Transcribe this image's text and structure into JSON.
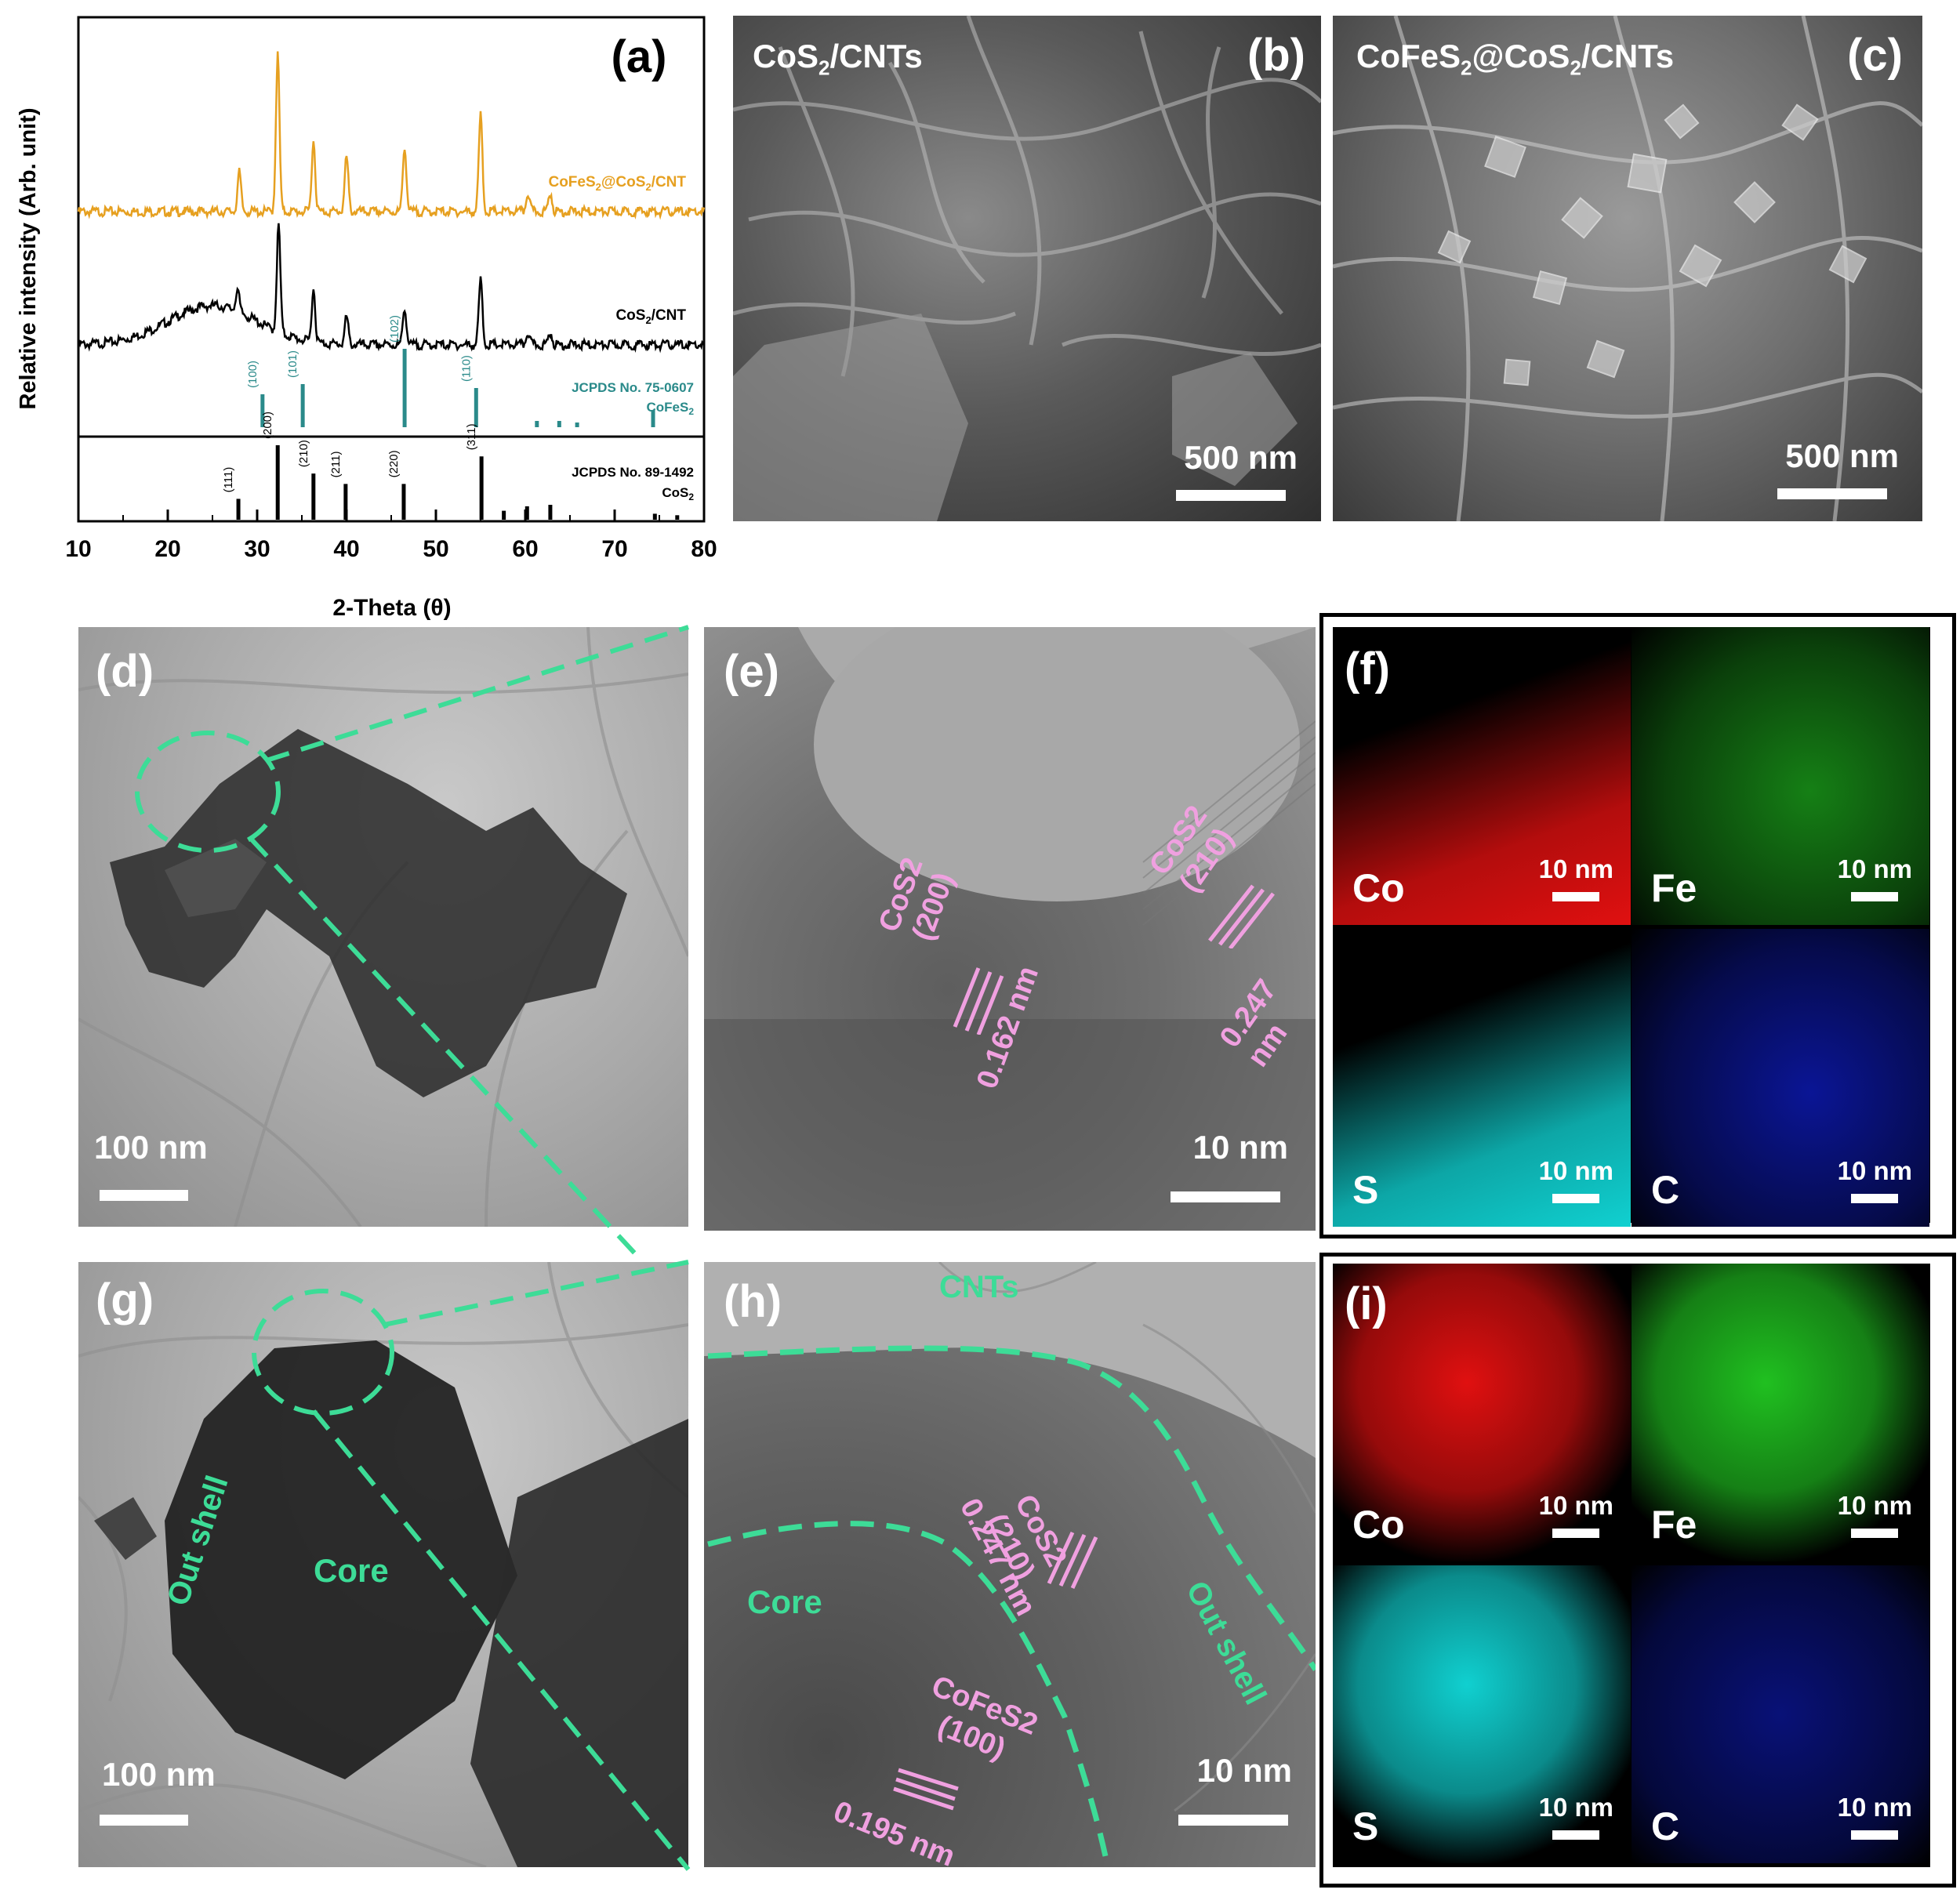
{
  "panel_a": {
    "label": "(a)",
    "chart_data": {
      "type": "line",
      "title": "",
      "xlabel": "2-Theta (θ)",
      "ylabel": "Relative intensity (Arb. unit)",
      "xlim": [
        10,
        80
      ],
      "xticks": [
        10,
        20,
        30,
        40,
        50,
        60,
        70,
        80
      ],
      "series": [
        {
          "name": "CoFeS2@CoS2/CNT",
          "color": "#e6a020",
          "peaks": [
            [
              28.0,
              0.25
            ],
            [
              32.3,
              1.0
            ],
            [
              36.3,
              0.45
            ],
            [
              40.0,
              0.35
            ],
            [
              46.5,
              0.42
            ],
            [
              55.0,
              0.62
            ],
            [
              60.3,
              0.12
            ],
            [
              62.8,
              0.12
            ]
          ]
        },
        {
          "name": "CoS2/CNT",
          "color": "#000000",
          "peaks": [
            [
              27.8,
              0.18
            ],
            [
              32.4,
              0.85
            ],
            [
              36.3,
              0.42
            ],
            [
              40.0,
              0.22
            ],
            [
              46.5,
              0.3
            ],
            [
              55.0,
              0.52
            ],
            [
              60.3,
              0.1
            ],
            [
              62.8,
              0.1
            ]
          ]
        }
      ],
      "reference_cofes2": {
        "name": "JCPDS No. 75-0607",
        "phase": "CoFeS2",
        "color": "#2a8a8a",
        "sticks": [
          {
            "x": 30.6,
            "h": 0.42,
            "hkl": "(100)"
          },
          {
            "x": 35.1,
            "h": 0.55,
            "hkl": "(101)"
          },
          {
            "x": 46.5,
            "h": 1.0,
            "hkl": "(102)"
          },
          {
            "x": 54.5,
            "h": 0.5,
            "hkl": "(110)"
          },
          {
            "x": 61.3,
            "h": 0.08,
            "hkl": ""
          },
          {
            "x": 63.8,
            "h": 0.08,
            "hkl": ""
          },
          {
            "x": 65.8,
            "h": 0.06,
            "hkl": ""
          },
          {
            "x": 74.3,
            "h": 0.22,
            "hkl": ""
          }
        ]
      },
      "reference_cos2": {
        "name": "JCPDS No. 89-1492",
        "phase": "CoS2",
        "color": "#000000",
        "sticks": [
          {
            "x": 27.9,
            "h": 0.28,
            "hkl": "(111)"
          },
          {
            "x": 32.3,
            "h": 1.0,
            "hkl": "(200)"
          },
          {
            "x": 36.3,
            "h": 0.62,
            "hkl": "(210)"
          },
          {
            "x": 39.9,
            "h": 0.48,
            "hkl": "(211)"
          },
          {
            "x": 46.4,
            "h": 0.48,
            "hkl": "(220)"
          },
          {
            "x": 55.1,
            "h": 0.85,
            "hkl": "(311)"
          },
          {
            "x": 57.6,
            "h": 0.12,
            "hkl": ""
          },
          {
            "x": 60.2,
            "h": 0.18,
            "hkl": ""
          },
          {
            "x": 62.8,
            "h": 0.2,
            "hkl": ""
          },
          {
            "x": 74.5,
            "h": 0.08,
            "hkl": ""
          },
          {
            "x": 77.0,
            "h": 0.06,
            "hkl": ""
          }
        ]
      }
    }
  },
  "panel_b": {
    "label": "(b)",
    "title": "CoS",
    "title_sub": "2",
    "title_tail": "/CNTs",
    "scale": "500 nm"
  },
  "panel_c": {
    "label": "(c)",
    "title": "CoFeS",
    "title_sub": "2",
    "title_mid": "@CoS",
    "title_sub2": "2",
    "title_tail": "/CNTs",
    "scale": "500 nm"
  },
  "panel_d": {
    "label": "(d)",
    "scale": "100 nm"
  },
  "panel_e": {
    "label": "(e)",
    "scale": "10 nm",
    "ann1": {
      "phase": "CoS2",
      "hkl": "(200)",
      "d": "0.162 nm"
    },
    "ann2": {
      "phase": "CoS2",
      "hkl": "(210)",
      "d": "0.247 nm"
    }
  },
  "panel_f": {
    "label": "(f)",
    "maps": [
      {
        "el": "Co",
        "scale": "10 nm",
        "color": "#e01010"
      },
      {
        "el": "Fe",
        "scale": "10 nm",
        "color": "#20c020"
      },
      {
        "el": "S",
        "scale": "10 nm",
        "color": "#10d0d0"
      },
      {
        "el": "C",
        "scale": "10 nm",
        "color": "#1020e0"
      }
    ]
  },
  "panel_g": {
    "label": "(g)",
    "scale": "100 nm",
    "core": "Core",
    "shell": "Out shell"
  },
  "panel_h": {
    "label": "(h)",
    "scale": "10 nm",
    "cnts": "CNTs",
    "core": "Core",
    "shell": "Out shell",
    "ann1": {
      "phase": "CoS2",
      "hkl": "(210)",
      "d": "0.247 nm"
    },
    "ann2": {
      "phase": "CoFeS2",
      "hkl": "(100)",
      "d": "0.195 nm"
    }
  },
  "panel_i": {
    "label": "(i)",
    "maps": [
      {
        "el": "Co",
        "scale": "10 nm",
        "color": "#e01010"
      },
      {
        "el": "Fe",
        "scale": "10 nm",
        "color": "#20c020"
      },
      {
        "el": "S",
        "scale": "10 nm",
        "color": "#10d0d0"
      },
      {
        "el": "C",
        "scale": "10 nm",
        "color": "#1020e0"
      }
    ]
  },
  "accent_color": "#3ddc97",
  "hkl_color": "#f0a0e0"
}
